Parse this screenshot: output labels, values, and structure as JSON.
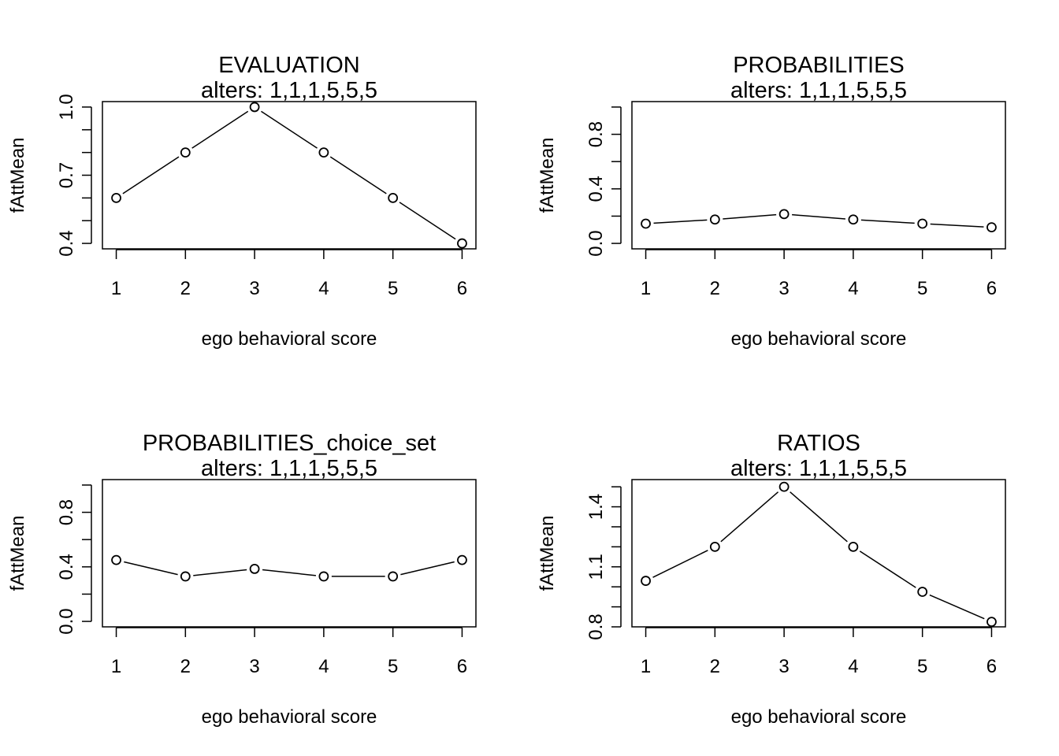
{
  "chart_data": [
    {
      "type": "line",
      "title": "EVALUATION",
      "subtitle": "alters: 1,1,1,5,5,5",
      "xlabel": "ego behavioral score",
      "ylabel": "fAttMean",
      "x": [
        1,
        2,
        3,
        4,
        5,
        6
      ],
      "y": [
        0.6,
        0.8,
        1.0,
        0.8,
        0.6,
        0.4
      ],
      "xlim": [
        0.8,
        6.2
      ],
      "ylim": [
        0.376,
        1.024
      ],
      "xticks": [
        1,
        2,
        3,
        4,
        5,
        6
      ],
      "yticks_major": [
        0.4,
        0.7,
        1.0
      ],
      "yticks_minor": [
        0.5,
        0.6,
        0.8,
        0.9
      ],
      "ytick_labels": [
        "0.4",
        "0.7",
        "1.0"
      ],
      "xtick_labels": [
        "1",
        "2",
        "3",
        "4",
        "5",
        "6"
      ],
      "grid": false
    },
    {
      "type": "line",
      "title": "PROBABILITIES",
      "subtitle": "alters: 1,1,1,5,5,5",
      "xlabel": "ego behavioral score",
      "ylabel": "fAttMean",
      "x": [
        1,
        2,
        3,
        4,
        5,
        6
      ],
      "y": [
        0.145,
        0.175,
        0.215,
        0.175,
        0.145,
        0.118
      ],
      "xlim": [
        0.8,
        6.2
      ],
      "ylim": [
        -0.04,
        1.04
      ],
      "xticks": [
        1,
        2,
        3,
        4,
        5,
        6
      ],
      "yticks_major": [
        0.0,
        0.4,
        0.8
      ],
      "yticks_minor": [
        0.2,
        0.6,
        1.0
      ],
      "ytick_labels": [
        "0.0",
        "0.4",
        "0.8"
      ],
      "xtick_labels": [
        "1",
        "2",
        "3",
        "4",
        "5",
        "6"
      ],
      "grid": false
    },
    {
      "type": "line",
      "title": "PROBABILITIES_choice_set",
      "subtitle": "alters: 1,1,1,5,5,5",
      "xlabel": "ego behavioral score",
      "ylabel": "fAttMean",
      "x": [
        1,
        2,
        3,
        4,
        5,
        6
      ],
      "y": [
        0.45,
        0.33,
        0.385,
        0.33,
        0.33,
        0.45
      ],
      "xlim": [
        0.8,
        6.2
      ],
      "ylim": [
        -0.04,
        1.04
      ],
      "xticks": [
        1,
        2,
        3,
        4,
        5,
        6
      ],
      "yticks_major": [
        0.0,
        0.4,
        0.8
      ],
      "yticks_minor": [
        0.2,
        0.6,
        1.0
      ],
      "ytick_labels": [
        "0.0",
        "0.4",
        "0.8"
      ],
      "xtick_labels": [
        "1",
        "2",
        "3",
        "4",
        "5",
        "6"
      ],
      "grid": false
    },
    {
      "type": "line",
      "title": "RATIOS",
      "subtitle": "alters: 1,1,1,5,5,5",
      "xlabel": "ego behavioral score",
      "ylabel": "fAttMean",
      "x": [
        1,
        2,
        3,
        4,
        5,
        6
      ],
      "y": [
        1.03,
        1.2,
        1.5,
        1.2,
        0.975,
        0.825
      ],
      "xlim": [
        0.8,
        6.2
      ],
      "ylim": [
        0.8,
        1.536
      ],
      "xticks": [
        1,
        2,
        3,
        4,
        5,
        6
      ],
      "yticks_major": [
        0.8,
        1.1,
        1.4
      ],
      "yticks_minor": [
        0.9,
        1.0,
        1.2,
        1.3,
        1.5
      ],
      "ytick_labels": [
        "0.8",
        "1.1",
        "1.4"
      ],
      "xtick_labels": [
        "1",
        "2",
        "3",
        "4",
        "5",
        "6"
      ],
      "grid": false
    }
  ]
}
